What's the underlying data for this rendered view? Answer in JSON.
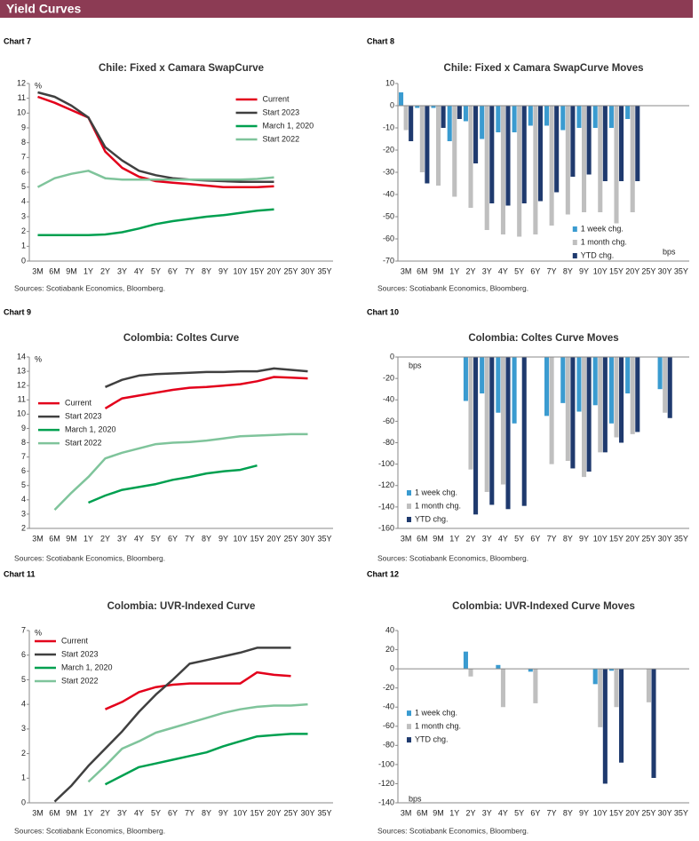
{
  "header": {
    "title": "Yield Curves"
  },
  "chart_data": [
    {
      "label": "Chart 7",
      "type": "line",
      "title": "Chile: Fixed x Camara SwapCurve",
      "y_label": "%",
      "categories": [
        "3M",
        "6M",
        "9M",
        "1Y",
        "2Y",
        "3Y",
        "4Y",
        "5Y",
        "6Y",
        "7Y",
        "8Y",
        "9Y",
        "10Y",
        "15Y",
        "20Y",
        "25Y",
        "30Y",
        "35Y"
      ],
      "series": [
        {
          "name": "Current",
          "color": "#e3001b",
          "values": [
            11.1,
            10.7,
            10.2,
            9.7,
            7.4,
            6.3,
            5.7,
            5.4,
            5.3,
            5.2,
            5.1,
            5.0,
            5.0,
            5.0,
            5.05,
            null,
            null,
            null
          ]
        },
        {
          "name": "Start 2023",
          "color": "#404040",
          "values": [
            11.4,
            11.1,
            10.5,
            9.7,
            7.7,
            6.8,
            6.1,
            5.8,
            5.6,
            5.5,
            5.45,
            5.4,
            5.35,
            5.35,
            5.35,
            null,
            null,
            null
          ]
        },
        {
          "name": "March 1, 2020",
          "color": "#00a050",
          "values": [
            1.75,
            1.75,
            1.75,
            1.75,
            1.8,
            1.95,
            2.2,
            2.5,
            2.7,
            2.85,
            3.0,
            3.1,
            3.25,
            3.4,
            3.5,
            null,
            null,
            null
          ]
        },
        {
          "name": "Start 2022",
          "color": "#7fc49b",
          "values": [
            5.0,
            5.6,
            5.9,
            6.1,
            5.6,
            5.5,
            5.5,
            5.5,
            5.5,
            5.5,
            5.5,
            5.5,
            5.5,
            5.55,
            5.65,
            null,
            null,
            null
          ]
        }
      ],
      "ylim": [
        0,
        12
      ],
      "yticks": [
        0,
        1,
        2,
        3,
        4,
        5,
        6,
        7,
        8,
        9,
        10,
        11,
        12
      ],
      "legend": "upper right",
      "source": "Sources: Scotiabank Economics, Bloomberg."
    },
    {
      "label": "Chart 8",
      "type": "bar",
      "title": "Chile: Fixed x Camara SwapCurve Moves",
      "y_label": "bps",
      "categories": [
        "3M",
        "6M",
        "9M",
        "1Y",
        "2Y",
        "3Y",
        "4Y",
        "5Y",
        "6Y",
        "7Y",
        "8Y",
        "9Y",
        "10Y",
        "15Y",
        "20Y",
        "25Y",
        "30Y",
        "35Y"
      ],
      "series": [
        {
          "name": "1 week chg.",
          "color": "#3a9bd0",
          "values": [
            6,
            -1,
            -1,
            -16,
            -7,
            -15,
            -12,
            -12,
            -9,
            -9,
            -11,
            -10,
            -10,
            -10,
            -6,
            null,
            null,
            null
          ]
        },
        {
          "name": "1 month chg.",
          "color": "#bfbfbf",
          "values": [
            -11,
            -30,
            -36,
            -41,
            -46,
            -56,
            -58,
            -59,
            -58,
            -54,
            -49,
            -48,
            -48,
            -53,
            -48,
            null,
            null,
            null
          ]
        },
        {
          "name": "YTD chg.",
          "color": "#1f3a6e",
          "values": [
            -16,
            -35,
            -10,
            -6,
            -26,
            -44,
            -45,
            -44,
            -43,
            -39,
            -32,
            -31,
            -34,
            -34,
            -34,
            null,
            null,
            null
          ]
        }
      ],
      "ylim": [
        -70,
        10
      ],
      "yticks": [
        -70,
        -60,
        -50,
        -40,
        -30,
        -20,
        -10,
        0,
        10
      ],
      "legend": "lower right",
      "source": "Sources: Scotiabank Economics, Bloomberg."
    },
    {
      "label": "Chart 9",
      "type": "line",
      "title": "Colombia: Coltes Curve",
      "y_label": "%",
      "categories": [
        "3M",
        "6M",
        "9M",
        "1Y",
        "2Y",
        "3Y",
        "4Y",
        "5Y",
        "6Y",
        "7Y",
        "8Y",
        "9Y",
        "10Y",
        "15Y",
        "20Y",
        "25Y",
        "30Y",
        "35Y"
      ],
      "series": [
        {
          "name": "Current",
          "color": "#e3001b",
          "values": [
            null,
            null,
            null,
            null,
            10.4,
            11.1,
            11.3,
            11.5,
            11.7,
            11.85,
            11.9,
            12.0,
            12.1,
            12.3,
            12.6,
            12.55,
            12.5,
            null
          ]
        },
        {
          "name": "Start 2023",
          "color": "#404040",
          "values": [
            null,
            null,
            null,
            null,
            11.9,
            12.4,
            12.7,
            12.8,
            12.85,
            12.9,
            12.95,
            12.95,
            13.0,
            13.0,
            13.2,
            13.1,
            13.0,
            null
          ]
        },
        {
          "name": "March 1, 2020",
          "color": "#00a050",
          "values": [
            null,
            null,
            null,
            3.8,
            4.3,
            4.7,
            4.9,
            5.1,
            5.4,
            5.6,
            5.85,
            6.0,
            6.1,
            6.4,
            null,
            null,
            null,
            null
          ]
        },
        {
          "name": "Start 2022",
          "color": "#7fc49b",
          "values": [
            null,
            3.3,
            4.5,
            5.6,
            6.9,
            7.3,
            7.6,
            7.9,
            8.0,
            8.05,
            8.15,
            8.3,
            8.45,
            8.5,
            8.55,
            8.6,
            8.6,
            null
          ]
        }
      ],
      "ylim": [
        2,
        14
      ],
      "yticks": [
        2,
        3,
        4,
        5,
        6,
        7,
        8,
        9,
        10,
        11,
        12,
        13,
        14
      ],
      "legend": "center left",
      "source": "Sources: Scotiabank Economics, Bloomberg."
    },
    {
      "label": "Chart 10",
      "type": "bar",
      "title": "Colombia: Coltes Curve Moves",
      "y_label": "bps",
      "categories": [
        "3M",
        "6M",
        "9M",
        "1Y",
        "2Y",
        "3Y",
        "4Y",
        "5Y",
        "6Y",
        "7Y",
        "8Y",
        "9Y",
        "10Y",
        "15Y",
        "20Y",
        "25Y",
        "30Y",
        "35Y"
      ],
      "series": [
        {
          "name": "1 week chg.",
          "color": "#3a9bd0",
          "values": [
            null,
            null,
            null,
            null,
            -41,
            -34,
            -52,
            -62,
            null,
            -55,
            -43,
            -51,
            -45,
            -62,
            -34,
            null,
            -30,
            null
          ]
        },
        {
          "name": "1 month chg.",
          "color": "#bfbfbf",
          "values": [
            null,
            null,
            null,
            null,
            -105,
            -126,
            -119,
            null,
            null,
            -100,
            -97,
            -112,
            -89,
            -75,
            -72,
            null,
            -52,
            null
          ]
        },
        {
          "name": "YTD chg.",
          "color": "#1f3a6e",
          "values": [
            null,
            null,
            null,
            null,
            -147,
            -138,
            -142,
            -139,
            null,
            null,
            -104,
            -107,
            -89,
            -80,
            -70,
            null,
            -57,
            null
          ]
        }
      ],
      "ylim": [
        -160,
        0
      ],
      "yticks": [
        -160,
        -140,
        -120,
        -100,
        -80,
        -60,
        -40,
        -20,
        0
      ],
      "legend": "lower left",
      "source": "Sources: Scotiabank Economics, Bloomberg."
    },
    {
      "label": "Chart 11",
      "type": "line",
      "title": "Colombia: UVR-Indexed Curve",
      "y_label": "%",
      "categories": [
        "3M",
        "6M",
        "9M",
        "1Y",
        "2Y",
        "3Y",
        "4Y",
        "5Y",
        "6Y",
        "7Y",
        "8Y",
        "9Y",
        "10Y",
        "15Y",
        "20Y",
        "25Y",
        "30Y",
        "35Y"
      ],
      "series": [
        {
          "name": "Current",
          "color": "#e3001b",
          "values": [
            null,
            null,
            null,
            null,
            3.8,
            4.1,
            4.5,
            4.7,
            4.8,
            4.85,
            4.85,
            4.85,
            4.85,
            5.3,
            5.2,
            5.15,
            null,
            null
          ]
        },
        {
          "name": "Start 2023",
          "color": "#404040",
          "values": [
            null,
            0.05,
            0.7,
            1.5,
            2.2,
            2.9,
            3.7,
            4.4,
            5.0,
            5.65,
            5.8,
            5.95,
            6.1,
            6.3,
            6.3,
            6.3,
            null,
            null
          ]
        },
        {
          "name": "March 1, 2020",
          "color": "#00a050",
          "values": [
            null,
            null,
            null,
            null,
            0.75,
            1.1,
            1.45,
            1.6,
            1.75,
            1.9,
            2.05,
            2.3,
            2.5,
            2.7,
            2.75,
            2.8,
            2.8,
            null
          ]
        },
        {
          "name": "Start 2022",
          "color": "#7fc49b",
          "values": [
            null,
            null,
            null,
            0.85,
            1.5,
            2.2,
            2.5,
            2.85,
            3.05,
            3.25,
            3.45,
            3.65,
            3.8,
            3.9,
            3.95,
            3.95,
            4.0,
            null
          ]
        }
      ],
      "ylim": [
        0,
        7
      ],
      "yticks": [
        0,
        1,
        2,
        3,
        4,
        5,
        6,
        7
      ],
      "legend": "upper left",
      "source": "Sources: Scotiabank Economics, Bloomberg."
    },
    {
      "label": "Chart 12",
      "type": "bar",
      "title": "Colombia: UVR-Indexed Curve Moves",
      "y_label": "bps",
      "categories": [
        "3M",
        "6M",
        "9M",
        "1Y",
        "2Y",
        "3Y",
        "4Y",
        "5Y",
        "6Y",
        "7Y",
        "8Y",
        "9Y",
        "10Y",
        "15Y",
        "20Y",
        "25Y",
        "30Y",
        "35Y"
      ],
      "series": [
        {
          "name": "1 week chg.",
          "color": "#3a9bd0",
          "values": [
            null,
            null,
            null,
            null,
            18,
            null,
            4,
            null,
            -3,
            null,
            null,
            null,
            -16,
            -2,
            null,
            null,
            null,
            null
          ]
        },
        {
          "name": "1 month chg.",
          "color": "#bfbfbf",
          "values": [
            null,
            null,
            null,
            null,
            -8,
            null,
            -40,
            null,
            -36,
            null,
            null,
            null,
            -61,
            -40,
            null,
            -35,
            null,
            null
          ]
        },
        {
          "name": "YTD chg.",
          "color": "#1f3a6e",
          "values": [
            null,
            null,
            null,
            null,
            null,
            null,
            null,
            null,
            null,
            null,
            null,
            null,
            -120,
            -98,
            null,
            -114,
            null,
            null
          ]
        }
      ],
      "ylim": [
        -140,
        40
      ],
      "yticks": [
        -140,
        -120,
        -100,
        -80,
        -60,
        -40,
        -20,
        0,
        20,
        40
      ],
      "legend": "center left",
      "source": "Sources: Scotiabank Economics, Bloomberg."
    }
  ]
}
